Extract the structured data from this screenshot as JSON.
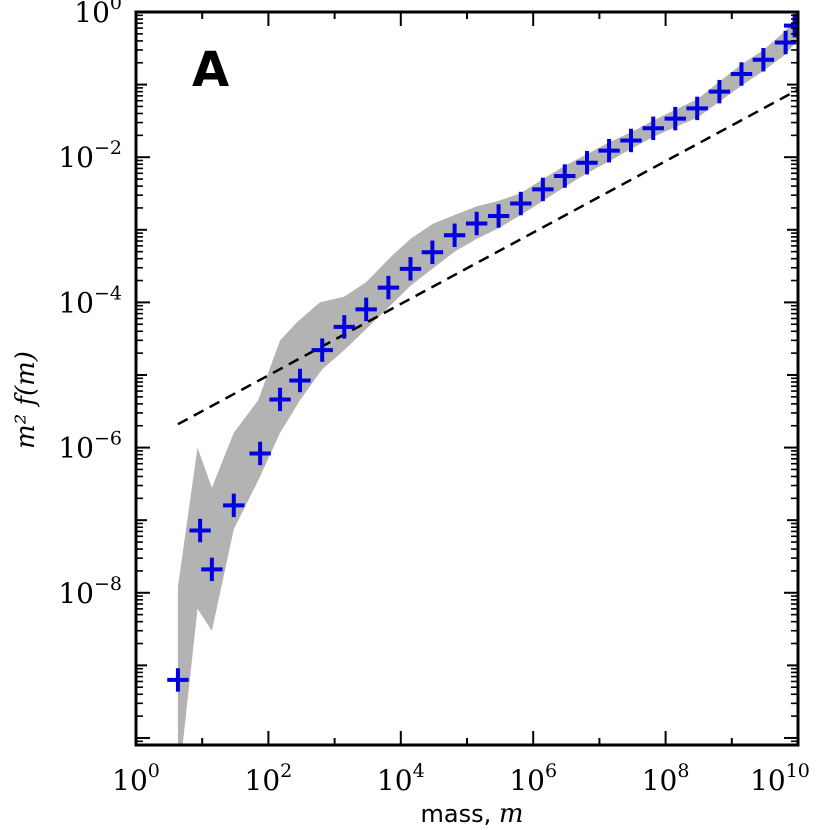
{
  "chart_data": {
    "type": "scatter",
    "panel_label": "A",
    "xscale": "log",
    "yscale": "log",
    "xlim": [
      1,
      10000000000
    ],
    "ylim": [
      8e-11,
      1
    ],
    "xlabel": {
      "text": "mass, ",
      "var": "m"
    },
    "ylabel": {
      "text": "m² f(m)"
    },
    "x_ticks": [
      {
        "base": "10",
        "exp": "0",
        "value": 1
      },
      {
        "base": "10",
        "exp": "2",
        "value": 100
      },
      {
        "base": "10",
        "exp": "4",
        "value": 10000
      },
      {
        "base": "10",
        "exp": "6",
        "value": 1000000
      },
      {
        "base": "10",
        "exp": "8",
        "value": 100000000
      },
      {
        "base": "10",
        "exp": "10",
        "value": 10000000000
      }
    ],
    "y_ticks": [
      {
        "base": "10",
        "exp": "0",
        "value": 1
      },
      {
        "base": "10",
        "exp": "−2",
        "value": 0.01
      },
      {
        "base": "10",
        "exp": "−4",
        "value": 0.0001
      },
      {
        "base": "10",
        "exp": "−6",
        "value": 1e-06
      },
      {
        "base": "10",
        "exp": "−8",
        "value": 1e-08
      }
    ],
    "series": [
      {
        "marker": "plus",
        "color": "#0000e0",
        "points": [
          [
            4.3,
            6.3e-10
          ],
          [
            9.3,
            7.2e-08
          ],
          [
            14,
            2.1e-08
          ],
          [
            30,
            1.6e-07
          ],
          [
            75,
            8.3e-07
          ],
          [
            150,
            4.6e-06
          ],
          [
            300,
            8.4e-06
          ],
          [
            650,
            2.2e-05
          ],
          [
            1400,
            4.6e-05
          ],
          [
            3000,
            8e-05
          ],
          [
            6500,
            0.00016
          ],
          [
            14000,
            0.00029
          ],
          [
            30000,
            0.00049
          ],
          [
            65000,
            0.00084
          ],
          [
            140000,
            0.00122
          ],
          [
            300000,
            0.00155
          ],
          [
            650000,
            0.0023
          ],
          [
            1400000,
            0.0036
          ],
          [
            3000000,
            0.0055
          ],
          [
            6500000,
            0.0084
          ],
          [
            14000000,
            0.0123
          ],
          [
            30000000,
            0.017
          ],
          [
            65000000,
            0.025
          ],
          [
            140000000,
            0.034
          ],
          [
            300000000,
            0.047
          ],
          [
            650000000,
            0.08
          ],
          [
            1400000000,
            0.14
          ],
          [
            3000000000,
            0.22
          ],
          [
            6500000000,
            0.38
          ],
          [
            8900000000,
            0.65
          ]
        ],
        "x_err_factor": 1.45,
        "y_err_factor": 1.45
      }
    ],
    "band": {
      "color": "#b3b3b3",
      "upper": [
        [
          4.3,
          1.2e-08
        ],
        [
          8.5,
          1e-06
        ],
        [
          14,
          2.8e-07
        ],
        [
          30,
          1.6e-06
        ],
        [
          70,
          4.5e-06
        ],
        [
          150,
          3e-05
        ],
        [
          280,
          5.5e-05
        ],
        [
          600,
          0.0001
        ],
        [
          1400,
          0.00012
        ],
        [
          3000,
          0.00019
        ],
        [
          7000,
          0.00042
        ],
        [
          14000,
          0.00075
        ],
        [
          30000,
          0.0012
        ],
        [
          65000,
          0.0016
        ],
        [
          140000,
          0.0021
        ],
        [
          300000,
          0.0025
        ],
        [
          650000,
          0.0032
        ],
        [
          1400000,
          0.005
        ],
        [
          3000000,
          0.0076
        ],
        [
          6500000,
          0.011
        ],
        [
          14000000,
          0.016
        ],
        [
          30000000,
          0.022
        ],
        [
          65000000,
          0.032
        ],
        [
          140000000,
          0.045
        ],
        [
          300000000,
          0.063
        ],
        [
          650000000,
          0.11
        ],
        [
          1400000000,
          0.19
        ],
        [
          3000000000,
          0.3
        ],
        [
          6500000000,
          0.55
        ],
        [
          10000000000,
          0.95
        ]
      ],
      "lower": [
        [
          10000000000,
          0.42
        ],
        [
          6500000000,
          0.26
        ],
        [
          3000000000,
          0.155
        ],
        [
          1400000000,
          0.097
        ],
        [
          650000000,
          0.058
        ],
        [
          300000000,
          0.035
        ],
        [
          140000000,
          0.026
        ],
        [
          65000000,
          0.019
        ],
        [
          30000000,
          0.013
        ],
        [
          14000000,
          0.0088
        ],
        [
          6500000,
          0.006
        ],
        [
          3000000,
          0.0039
        ],
        [
          1400000,
          0.0025
        ],
        [
          650000,
          0.0016
        ],
        [
          300000,
          0.00105
        ],
        [
          140000,
          0.00075
        ],
        [
          65000,
          0.0005
        ],
        [
          30000,
          0.00029
        ],
        [
          14000,
          0.00017
        ],
        [
          6500,
          8.5e-05
        ],
        [
          3000,
          4.3e-05
        ],
        [
          1400,
          2.2e-05
        ],
        [
          650,
          1.2e-05
        ],
        [
          300,
          4.5e-06
        ],
        [
          150,
          1.6e-06
        ],
        [
          70,
          3.5e-07
        ],
        [
          30,
          7.5e-08
        ],
        [
          14,
          3e-09
        ],
        [
          8.5,
          6e-09
        ],
        [
          4.3,
          2e-11
        ]
      ]
    },
    "reference_line": {
      "style": "dashed",
      "color": "#000000",
      "points": [
        [
          4.3,
          2.1e-06
        ],
        [
          10000000000,
          0.085
        ]
      ]
    }
  }
}
